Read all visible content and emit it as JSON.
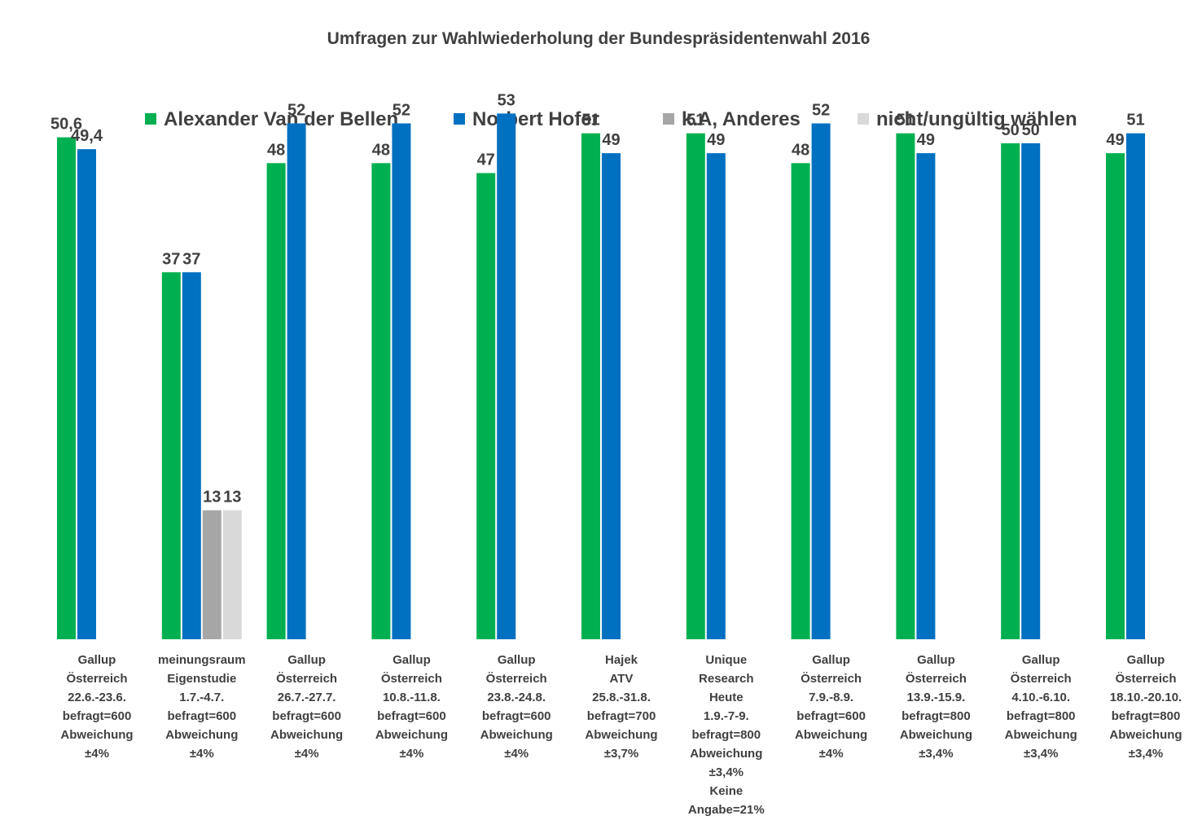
{
  "chart_data": {
    "type": "bar",
    "title": "Umfragen zur Wahlwiederholung der Bundespräsidentenwahl 2016",
    "xlabel": "",
    "ylabel": "",
    "ylim": [
      0,
      55
    ],
    "legend_position": "top",
    "categories": [
      [
        "Gallup",
        "Österreich",
        "22.6.-23.6.",
        "befragt=600",
        "Abweichung",
        "±4%"
      ],
      [
        "meinungsraum",
        "Eigenstudie",
        "1.7.-4.7.",
        "befragt=600",
        "Abweichung",
        "±4%"
      ],
      [
        "Gallup",
        "Österreich",
        "26.7.-27.7.",
        "befragt=600",
        "Abweichung",
        "±4%"
      ],
      [
        "Gallup",
        "Österreich",
        "10.8.-11.8.",
        "befragt=600",
        "Abweichung",
        "±4%"
      ],
      [
        "Gallup",
        "Österreich",
        "23.8.-24.8.",
        "befragt=600",
        "Abweichung",
        "±4%"
      ],
      [
        "Hajek",
        "ATV",
        "25.8.-31.8.",
        "befragt=700",
        "Abweichung",
        "±3,7%"
      ],
      [
        "Unique",
        "Research",
        "Heute",
        "1.9.-7-9.",
        "befragt=800",
        "Abweichung",
        "±3,4%",
        "Keine",
        "Angabe=21%"
      ],
      [
        "Gallup",
        "Österreich",
        "7.9.-8.9.",
        "befragt=600",
        "Abweichung",
        "±4%"
      ],
      [
        "Gallup",
        "Österreich",
        "13.9.-15.9.",
        "befragt=800",
        "Abweichung",
        "±3,4%"
      ],
      [
        "Gallup",
        "Österreich",
        "4.10.-6.10.",
        "befragt=800",
        "Abweichung",
        "±3,4%"
      ],
      [
        "Gallup",
        "Österreich",
        "18.10.-20.10.",
        "befragt=800",
        "Abweichung",
        "±3,4%"
      ]
    ],
    "series": [
      {
        "name": "Alexander Van der Bellen",
        "color": "#00B050",
        "values": [
          50.6,
          37,
          48,
          48,
          47,
          51,
          51,
          48,
          51,
          50,
          49
        ],
        "labels": [
          "50,6",
          "37",
          "48",
          "48",
          "47",
          "51",
          "51",
          "48",
          "51",
          "50",
          "49"
        ]
      },
      {
        "name": "Norbert Hofer",
        "color": "#0070C0",
        "values": [
          49.4,
          37,
          52,
          52,
          53,
          49,
          49,
          52,
          49,
          50,
          51
        ],
        "labels": [
          "49,4",
          "37",
          "52",
          "52",
          "53",
          "49",
          "49",
          "52",
          "49",
          "50",
          "51"
        ]
      },
      {
        "name": "k.A, Anderes",
        "color": "#A6A6A6",
        "values": [
          null,
          13,
          null,
          null,
          null,
          null,
          null,
          null,
          null,
          null,
          null
        ],
        "labels": [
          null,
          "13",
          null,
          null,
          null,
          null,
          null,
          null,
          null,
          null,
          null
        ]
      },
      {
        "name": "nicht/ungültig wählen",
        "color": "#D9D9D9",
        "values": [
          null,
          13,
          null,
          null,
          null,
          null,
          null,
          null,
          null,
          null,
          null
        ],
        "labels": [
          null,
          "13",
          null,
          null,
          null,
          null,
          null,
          null,
          null,
          null,
          null
        ]
      }
    ]
  }
}
